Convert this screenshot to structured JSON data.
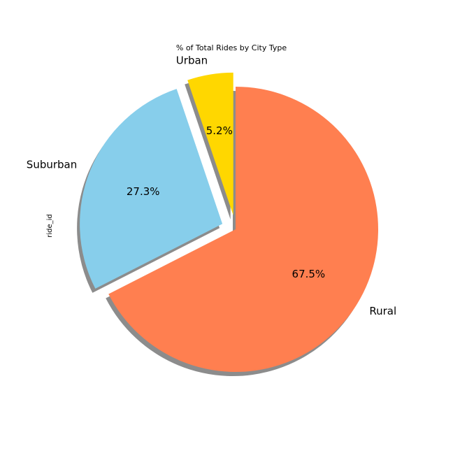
{
  "chart_data": {
    "type": "pie",
    "title": "% of Total Rides by City Type",
    "ylabel": "ride_id",
    "categories": [
      "Urban",
      "Suburban",
      "Rural"
    ],
    "values": [
      5.2,
      27.3,
      67.5
    ],
    "value_labels": [
      "5.2%",
      "27.3%",
      "67.5%"
    ],
    "colors": [
      "#FFD700",
      "#87CEEB",
      "#FF7F50"
    ],
    "explode": [
      0.1,
      0.1,
      0
    ],
    "start_angle_deg": 90,
    "shadow": true,
    "legend": "none"
  }
}
